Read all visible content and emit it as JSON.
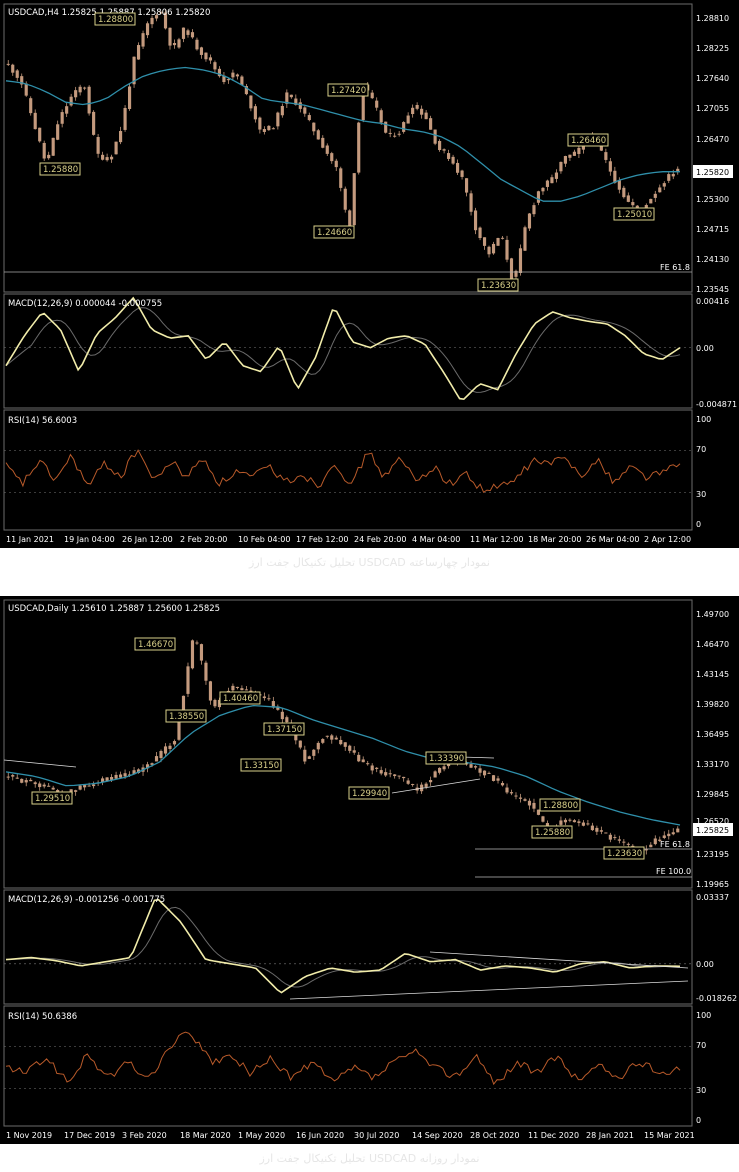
{
  "colors": {
    "bg": "#000000",
    "panel_border": "#6b6b6b",
    "candle": "#c49a7e",
    "ma": "#2f8faa",
    "macd": "#f1ecaa",
    "signal": "#6a6a6a",
    "rsi": "#b85a2a",
    "label_box": "#d9d08a",
    "text": "#ffffff"
  },
  "charts": [
    {
      "header": "USDCAD,H4  1.25825 1.25887 1.25806 1.25820",
      "caption": "تحلیل تکنیکال جفت ارز USDCAD نمودار چهارساعته",
      "price_ticks": [
        "1.28810",
        "1.28225",
        "1.27640",
        "1.27055",
        "1.26470",
        "1.25820",
        "1.25300",
        "1.24715",
        "1.24130",
        "1.23545"
      ],
      "current_price": "1.25820",
      "labels": [
        "1.28800",
        "1.25880",
        "1.24660",
        "1.27420",
        "1.23630",
        "1.26460",
        "1.25010"
      ],
      "fe_label": "FE 61.8",
      "macd_title": "MACD(12,26,9) 0.000044 -0.000755",
      "macd_ticks": [
        "0.00416",
        "0.00",
        "-0.004871"
      ],
      "rsi_title": "RSI(14) 56.6003",
      "rsi_ticks": [
        "100",
        "70",
        "30",
        "0"
      ],
      "date_labels": [
        "11 Jan 2021",
        "19 Jan 04:00",
        "26 Jan 12:00",
        "2 Feb 20:00",
        "10 Feb 04:00",
        "17 Feb 12:00",
        "24 Feb 20:00",
        "4 Mar 04:00",
        "11 Mar 12:00",
        "18 Mar 20:00",
        "26 Mar 04:00",
        "2 Apr 12:00"
      ]
    },
    {
      "header": "USDCAD,Daily  1.25610 1.25887 1.25600 1.25825",
      "caption": "تحلیل تکنیکال جفت ارز USDCAD نمودار روزانه",
      "price_ticks": [
        "1.49700",
        "1.46470",
        "1.43145",
        "1.39820",
        "1.36495",
        "1.33170",
        "1.29845",
        "1.26520",
        "1.25825",
        "1.23195",
        "1.19965"
      ],
      "current_price": "1.25825",
      "labels": [
        "1.46670",
        "1.38550",
        "1.40460",
        "1.37150",
        "1.33150",
        "1.29510",
        "1.29940",
        "1.33390",
        "1.28800",
        "1.25880",
        "1.23630"
      ],
      "fe_labels": [
        "FE 61.8",
        "FE 100.0"
      ],
      "macd_title": "MACD(12,26,9) -0.001256 -0.001775",
      "macd_ticks": [
        "0.03337",
        "0.00",
        "-0.018262"
      ],
      "rsi_title": "RSI(14) 50.6386",
      "rsi_ticks": [
        "100",
        "70",
        "30",
        "0"
      ],
      "date_labels": [
        "1 Nov 2019",
        "17 Dec 2019",
        "3 Feb 2020",
        "18 Mar 2020",
        "1 May 2020",
        "16 Jun 2020",
        "30 Jul 2020",
        "14 Sep 2020",
        "28 Oct 2020",
        "11 Dec 2020",
        "28 Jan 2021",
        "15 Mar 2021"
      ]
    }
  ],
  "chart_data": [
    {
      "type": "line",
      "title": "USDCAD,H4",
      "price_path": [
        1.2775,
        1.2745,
        1.2668,
        1.2588,
        1.2672,
        1.2715,
        1.274,
        1.2608,
        1.2596,
        1.266,
        1.279,
        1.285,
        1.288,
        1.28,
        1.2845,
        1.2805,
        1.278,
        1.2745,
        1.276,
        1.271,
        1.265,
        1.266,
        1.272,
        1.27,
        1.266,
        1.262,
        1.258,
        1.2466,
        1.2742,
        1.27,
        1.264,
        1.265,
        1.27,
        1.268,
        1.262,
        1.26,
        1.256,
        1.247,
        1.242,
        1.246,
        1.2363,
        1.248,
        1.254,
        1.256,
        1.26,
        1.261,
        1.2646,
        1.261,
        1.256,
        1.252,
        1.2501,
        1.253,
        1.256,
        1.2582
      ],
      "ma_path": [
        1.2745,
        1.274,
        1.2725,
        1.2705,
        1.27,
        1.271,
        1.2735,
        1.2755,
        1.2765,
        1.277,
        1.2765,
        1.2755,
        1.2735,
        1.271,
        1.2705,
        1.27,
        1.269,
        1.268,
        1.267,
        1.2665,
        1.2655,
        1.265,
        1.264,
        1.262,
        1.259,
        1.256,
        1.254,
        1.252,
        1.252,
        1.253,
        1.2545,
        1.256,
        1.257,
        1.2575,
        1.2575
      ],
      "ylim": [
        1.2354,
        1.2881
      ],
      "macd_path": [
        -0.0015,
        0.001,
        0.003,
        0.0015,
        -0.002,
        0.0012,
        0.0025,
        0.0042,
        0.0015,
        0.0008,
        0.001,
        -0.001,
        0.0005,
        -0.0015,
        -0.002,
        0.0002,
        -0.0035,
        -0.0008,
        0.0035,
        0.0005,
        0.0,
        0.0008,
        0.001,
        0.0003,
        -0.002,
        -0.0045,
        -0.003,
        -0.0035,
        -0.0005,
        0.002,
        0.003,
        0.0025,
        0.0022,
        0.002,
        0.001,
        -0.0005,
        -0.001,
        0.0
      ],
      "macd_ylim": [
        -0.004871,
        0.00416
      ],
      "rsi_path": [
        55,
        38,
        60,
        42,
        65,
        35,
        58,
        45,
        72,
        40,
        60,
        45,
        63,
        38,
        50,
        44,
        55,
        40,
        48,
        36,
        60,
        35,
        70,
        45,
        62,
        40,
        55,
        38,
        48,
        32,
        35,
        42,
        60,
        58,
        62,
        48,
        60,
        40,
        55,
        45,
        50,
        57
      ],
      "rsi_levels": [
        30,
        70
      ]
    },
    {
      "type": "line",
      "title": "USDCAD,Daily",
      "price_path": [
        1.315,
        1.31,
        1.305,
        1.2951,
        1.305,
        1.31,
        1.315,
        1.32,
        1.335,
        1.355,
        1.4667,
        1.3855,
        1.41,
        1.4046,
        1.395,
        1.3715,
        1.3315,
        1.36,
        1.35,
        1.33,
        1.32,
        1.315,
        1.2994,
        1.32,
        1.3339,
        1.325,
        1.315,
        1.295,
        1.288,
        1.2588,
        1.27,
        1.265,
        1.255,
        1.245,
        1.2363,
        1.25,
        1.2582
      ],
      "ma_path": [
        1.32,
        1.315,
        1.305,
        1.308,
        1.315,
        1.33,
        1.36,
        1.38,
        1.39,
        1.388,
        1.375,
        1.365,
        1.355,
        1.342,
        1.333,
        1.33,
        1.325,
        1.315,
        1.3,
        1.288,
        1.278,
        1.27,
        1.264
      ],
      "ylim": [
        1.19965,
        1.497
      ],
      "macd_path": [
        0.002,
        0.003,
        0.0015,
        -0.001,
        0.001,
        0.003,
        0.032,
        0.02,
        0.002,
        0.0,
        -0.002,
        -0.014,
        -0.006,
        -0.002,
        -0.004,
        -0.003,
        0.005,
        0.001,
        0.002,
        -0.003,
        -0.001,
        -0.002,
        -0.004,
        0.0,
        0.001,
        -0.002,
        -0.001,
        -0.0012
      ],
      "macd_ylim": [
        -0.018262,
        0.03337
      ],
      "rsi_path": [
        50,
        45,
        60,
        35,
        62,
        40,
        55,
        38,
        70,
        85,
        55,
        60,
        45,
        58,
        40,
        55,
        35,
        50,
        40,
        55,
        65,
        50,
        42,
        60,
        35,
        55,
        45,
        60,
        38,
        52,
        40,
        55,
        45,
        50
      ],
      "rsi_levels": [
        30,
        70
      ]
    }
  ]
}
